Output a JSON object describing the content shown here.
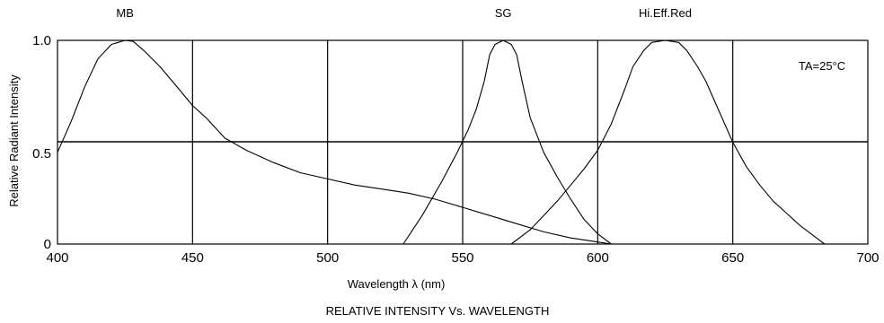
{
  "chart_data": {
    "type": "line",
    "title": "RELATIVE INTENSITY Vs. WAVELENGTH",
    "xlabel": "Wavelength λ  (nm)",
    "ylabel": "Relative Radiant Intensity",
    "xlim": [
      400,
      700
    ],
    "ylim": [
      0,
      1.0
    ],
    "x_ticks": [
      400,
      450,
      500,
      550,
      600,
      650,
      700
    ],
    "y_ticks": [
      {
        "value": 0,
        "label": "0"
      },
      {
        "value": 0.5,
        "label": "0.5"
      },
      {
        "value": 1.0,
        "label": "1.0"
      }
    ],
    "reference_lines": [
      0.5
    ],
    "annotation": "TA=25°C",
    "grid": true,
    "series": [
      {
        "name": "MB",
        "x": [
          400,
          405,
          410,
          415,
          420,
          425,
          428,
          432,
          438,
          445,
          450,
          455,
          462,
          470,
          480,
          490,
          500,
          510,
          520,
          530,
          540,
          550,
          560,
          570,
          580,
          590,
          600,
          605
        ],
        "y": [
          0.45,
          0.6,
          0.77,
          0.91,
          0.98,
          1.0,
          0.995,
          0.95,
          0.87,
          0.76,
          0.68,
          0.62,
          0.52,
          0.46,
          0.4,
          0.35,
          0.32,
          0.29,
          0.27,
          0.25,
          0.22,
          0.18,
          0.14,
          0.1,
          0.06,
          0.03,
          0.01,
          0.0
        ]
      },
      {
        "name": "SG",
        "x": [
          528,
          535,
          542,
          548,
          552,
          555,
          558,
          560,
          562,
          565,
          568,
          570,
          572,
          575,
          580,
          585,
          590,
          595,
          600,
          605
        ],
        "y": [
          0.0,
          0.14,
          0.3,
          0.45,
          0.56,
          0.66,
          0.8,
          0.93,
          0.98,
          1.0,
          0.98,
          0.93,
          0.8,
          0.62,
          0.45,
          0.33,
          0.22,
          0.12,
          0.05,
          0.0
        ]
      },
      {
        "name": "Hi.Eff.Red",
        "x": [
          568,
          575,
          580,
          585,
          590,
          595,
          600,
          605,
          610,
          613,
          617,
          620,
          625,
          630,
          633,
          637,
          640,
          645,
          650,
          655,
          660,
          665,
          670,
          675,
          680,
          684
        ],
        "y": [
          0.0,
          0.07,
          0.14,
          0.21,
          0.29,
          0.37,
          0.46,
          0.59,
          0.76,
          0.87,
          0.95,
          0.99,
          1.0,
          0.99,
          0.95,
          0.87,
          0.8,
          0.65,
          0.5,
          0.38,
          0.29,
          0.21,
          0.15,
          0.09,
          0.04,
          0.0
        ]
      }
    ]
  }
}
